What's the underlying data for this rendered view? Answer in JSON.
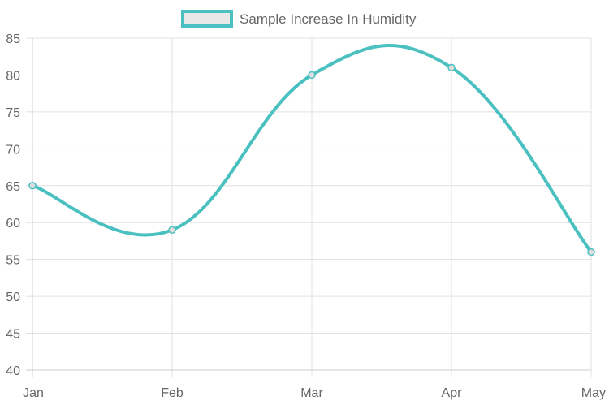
{
  "chart_data": {
    "type": "line",
    "categories": [
      "Jan",
      "Feb",
      "Mar",
      "Apr",
      "May"
    ],
    "series": [
      {
        "name": "Sample Increase In Humidity",
        "values": [
          65,
          59,
          80,
          81,
          56
        ]
      }
    ],
    "ylim": [
      40,
      85
    ],
    "yticks": [
      40,
      45,
      50,
      55,
      60,
      65,
      70,
      75,
      80,
      85
    ],
    "grid": true,
    "legend_position": "top",
    "line_color": "#4bc0c0",
    "legend_box_fill": "#e8e8e8",
    "point_fill": "#dddddd"
  }
}
